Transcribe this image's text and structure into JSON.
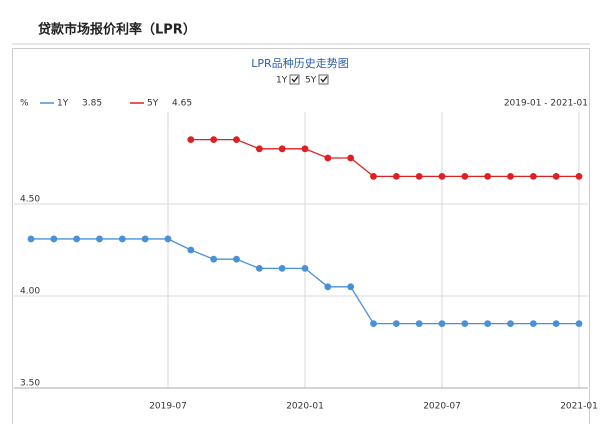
{
  "header": {
    "title": "贷款市场报价利率（LPR）"
  },
  "chart_data": {
    "type": "line",
    "title": "LPR品种历史走势图",
    "toggles": [
      "1Y",
      "5Y"
    ],
    "y_unit": "%",
    "range": "2019-01 - 2021-01",
    "categories": [
      null,
      null,
      null,
      null,
      null,
      null,
      "2019-07",
      null,
      null,
      null,
      null,
      null,
      "2020-01",
      null,
      null,
      null,
      null,
      null,
      "2020-07",
      null,
      null,
      null,
      null,
      null,
      "2021-01"
    ],
    "series": [
      {
        "name": "1Y",
        "legend_value": 3.85,
        "color": "#4a90d9",
        "values": [
          4.31,
          4.31,
          4.31,
          4.31,
          4.31,
          4.31,
          4.31,
          4.25,
          4.2,
          4.2,
          4.15,
          4.15,
          4.15,
          4.05,
          4.05,
          3.85,
          3.85,
          3.85,
          3.85,
          3.85,
          3.85,
          3.85,
          3.85,
          3.85,
          3.85
        ]
      },
      {
        "name": "5Y",
        "legend_value": 4.65,
        "color": "#e02020",
        "values": [
          null,
          null,
          null,
          null,
          null,
          null,
          null,
          4.85,
          4.85,
          4.85,
          4.8,
          4.8,
          4.8,
          4.75,
          4.75,
          4.65,
          4.65,
          4.65,
          4.65,
          4.65,
          4.65,
          4.65,
          4.65,
          4.65,
          4.65
        ]
      }
    ],
    "ylim": [
      3.5,
      5.0
    ],
    "yticks": [
      {
        "value": 3.5,
        "label": "3.50"
      },
      {
        "value": 4.0,
        "label": "4.00"
      },
      {
        "value": 4.5,
        "label": "4.50"
      }
    ],
    "grid": true
  }
}
